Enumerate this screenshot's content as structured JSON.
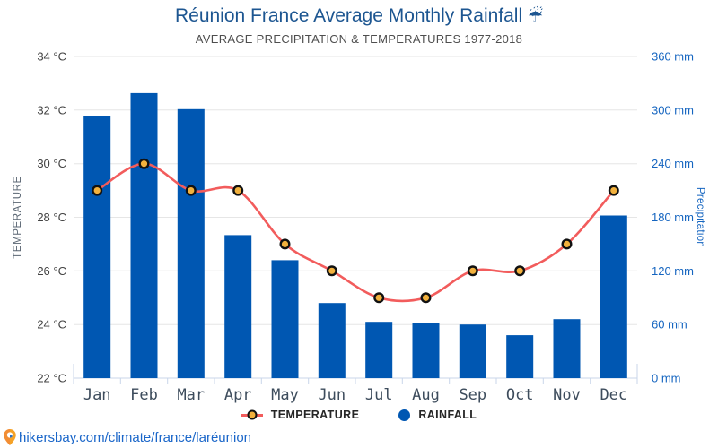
{
  "header": {
    "title": "Réunion France Average Monthly Rainfall",
    "title_icon": "☔",
    "subtitle": "AVERAGE PRECIPITATION & TEMPERATURES 1977-2018"
  },
  "chart_data": {
    "type": "combo",
    "categories": [
      "Jan",
      "Feb",
      "Mar",
      "Apr",
      "May",
      "Jun",
      "Jul",
      "Aug",
      "Sep",
      "Oct",
      "Nov",
      "Dec"
    ],
    "series": [
      {
        "name": "TEMPERATURE",
        "type": "line",
        "axis": "left",
        "unit": "°C",
        "color": "#f25c5c",
        "marker_color": "#f2b13d",
        "marker_stroke": "#111111",
        "values": [
          29,
          30,
          29,
          29,
          27,
          26,
          25,
          25,
          26,
          26,
          27,
          29
        ]
      },
      {
        "name": "RAINFALL",
        "type": "bar",
        "axis": "right",
        "unit": "mm",
        "color": "#0057b2",
        "values": [
          293,
          319,
          301,
          160,
          132,
          84,
          63,
          62,
          60,
          48,
          66,
          182
        ]
      }
    ],
    "left_axis": {
      "title": "TEMPERATURE",
      "unit": "°C",
      "min": 22,
      "max": 34,
      "step": 2,
      "tick_labels": [
        "34 °C",
        "32 °C",
        "30 °C",
        "28 °C",
        "26 °C",
        "24 °C",
        "22 °C"
      ]
    },
    "right_axis": {
      "title": "Precipitation",
      "unit": "mm",
      "min": 0,
      "max": 360,
      "step": 60,
      "tick_labels": [
        "360 mm",
        "300 mm",
        "240 mm",
        "180 mm",
        "120 mm",
        "60 mm",
        "0 mm"
      ]
    },
    "grid": true,
    "legend_position": "bottom",
    "colors": {
      "grid": "#e6e6e6",
      "axis": "#c9d6ea",
      "title": "#1d5691",
      "subtitle": "#4e4e4e"
    }
  },
  "legend": {
    "temperature_label": "TEMPERATURE",
    "rainfall_label": "RAINFALL"
  },
  "footer": {
    "link_text": "hikersbay.com/climate/france/laréunion"
  }
}
